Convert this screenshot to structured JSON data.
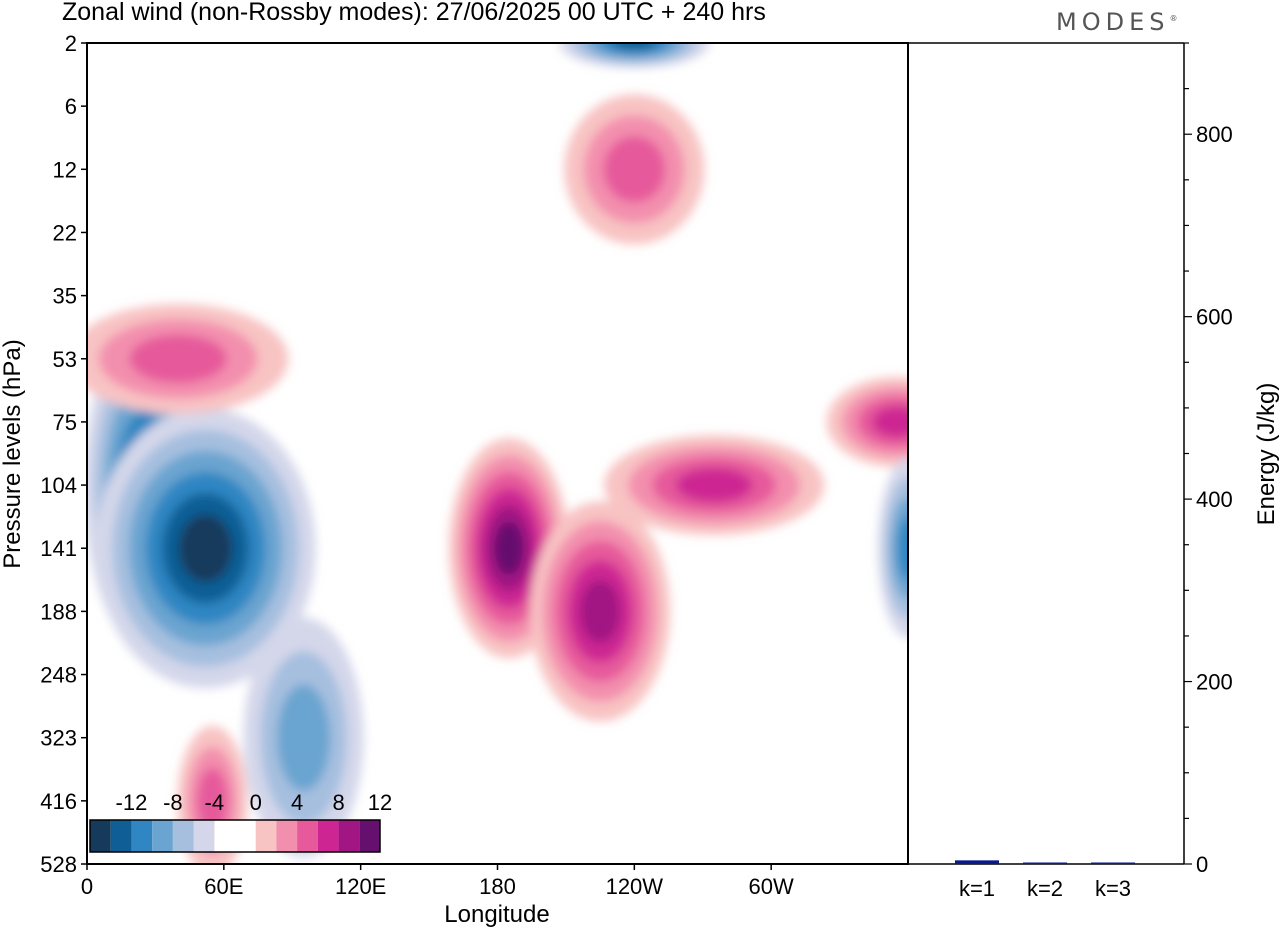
{
  "header": {
    "title": "Zonal wind (non-Rossby modes):  27/06/2025  00 UTC  + 240 hrs",
    "logo": "MODES",
    "logo_mark": "®"
  },
  "colors": {
    "neg": [
      "#163a5c",
      "#0f5f96",
      "#2f86c2",
      "#6aa4d0",
      "#a6bfdf",
      "#d4d7ea"
    ],
    "pos": [
      "#f8c3c3",
      "#f38fae",
      "#e65a9b",
      "#cd2693",
      "#a11683",
      "#65106e"
    ],
    "bar": "#0a1a8c"
  },
  "chart_data": [
    {
      "type": "heatmap",
      "title": "Zonal wind (non-Rossby modes):  27/06/2025  00 UTC  + 240 hrs",
      "xlabel": "Longitude",
      "ylabel": "Pressure levels (hPa)",
      "x_ticks": [
        "0",
        "60E",
        "120E",
        "180",
        "120W",
        "60W"
      ],
      "x_range_deg": [
        0,
        360
      ],
      "y_ticks": [
        "2",
        "6",
        "12",
        "22",
        "35",
        "53",
        "75",
        "104",
        "141",
        "188",
        "248",
        "323",
        "416",
        "528"
      ],
      "colorbar": {
        "ticks": [
          "-12",
          "-8",
          "-4",
          "0",
          "4",
          "8",
          "12"
        ],
        "levels": [
          -14,
          -12,
          -10,
          -8,
          -6,
          -4,
          -2,
          0,
          2,
          4,
          6,
          8,
          10,
          12,
          14
        ]
      },
      "features": [
        {
          "lon": 25,
          "level": "104",
          "value": -11
        },
        {
          "lon": 52,
          "level": "141",
          "value": -12
        },
        {
          "lon": 95,
          "level": "323",
          "value": -6
        },
        {
          "lon": 240,
          "level": "2",
          "value": -10
        },
        {
          "lon": 185,
          "level": "141",
          "value": 12
        },
        {
          "lon": 225,
          "level": "188",
          "value": 10
        },
        {
          "lon": 275,
          "level": "104",
          "value": 8
        },
        {
          "lon": 355,
          "level": "75",
          "value": 8
        },
        {
          "lon": 40,
          "level": "53",
          "value": 6
        },
        {
          "lon": 55,
          "level": "416",
          "value": 6
        },
        {
          "lon": 240,
          "level": "12",
          "value": 6
        },
        {
          "lon": 360,
          "level": "141",
          "value": -8
        }
      ]
    },
    {
      "type": "bar",
      "ylabel": "Energy (J/kg)",
      "categories": [
        "k=1",
        "k=2",
        "k=3"
      ],
      "values": [
        4,
        1,
        0.5
      ],
      "ylim": [
        0,
        900
      ],
      "y_ticks": [
        0,
        200,
        400,
        600,
        800
      ]
    }
  ]
}
